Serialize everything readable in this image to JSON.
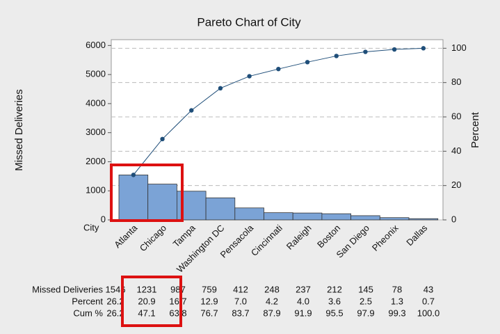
{
  "chart_data": {
    "type": "pareto",
    "title": "Pareto Chart of City",
    "x_label": "City",
    "y_label": "Missed Deliveries",
    "y2_label": "Percent",
    "categories": [
      "Atlanta",
      "Chicago",
      "Tampa",
      "Washington DC",
      "Pensacola",
      "Cincinnati",
      "Raleigh",
      "Boston",
      "San Diego",
      "Pheonix",
      "Dallas"
    ],
    "series": [
      {
        "name": "Missed Deliveries",
        "color": "#7ba3d6",
        "values": [
          1546,
          1231,
          987,
          759,
          412,
          248,
          237,
          212,
          145,
          78,
          43
        ]
      },
      {
        "name": "Percent",
        "values": [
          26.2,
          20.9,
          16.7,
          12.9,
          7.0,
          4.2,
          4.0,
          3.6,
          2.5,
          1.3,
          0.7
        ],
        "value_labels": [
          "26.2",
          "20.9",
          "16.7",
          "12.9",
          "7.0",
          "4.2",
          "4.0",
          "3.6",
          "2.5",
          "1.3",
          "0.7"
        ]
      },
      {
        "name": "Cum %",
        "color": "#1f4e79",
        "axis": "y2",
        "values": [
          26.2,
          47.1,
          63.8,
          76.7,
          83.7,
          87.9,
          91.9,
          95.5,
          97.9,
          99.3,
          100.0
        ],
        "value_labels": [
          "26.2",
          "47.1",
          "63.8",
          "76.7",
          "83.7",
          "87.9",
          "91.9",
          "95.5",
          "97.9",
          "99.3",
          "100.0"
        ]
      }
    ],
    "ylim": [
      0,
      6200
    ],
    "yticks": [
      0,
      1000,
      2000,
      3000,
      4000,
      5000,
      6000
    ],
    "y2lim": [
      0,
      105
    ],
    "y2ticks": [
      0,
      20,
      40,
      60,
      80,
      100
    ],
    "grid": true
  }
}
